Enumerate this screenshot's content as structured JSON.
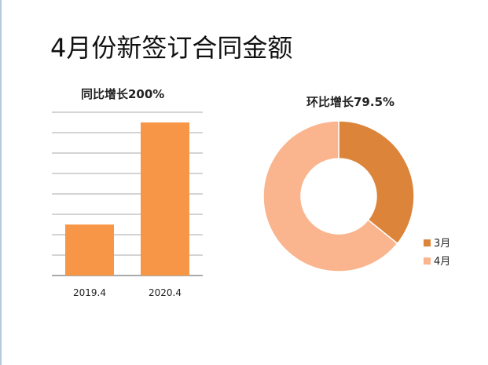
{
  "page": {
    "title": "4月份新签订合同金额"
  },
  "colors": {
    "bar": "#f79646",
    "donut_mar": "#dc843a",
    "donut_apr": "#fab58e",
    "gridline": "#8c8c8c",
    "axis": "#777777",
    "text": "#222222"
  },
  "chart_data": [
    {
      "type": "bar",
      "title": "同比增长200%",
      "categories": [
        "2019.4",
        "2020.4"
      ],
      "values": [
        2.5,
        7.5
      ],
      "ylim": [
        0,
        8
      ],
      "gridlines": true,
      "xlabel": "",
      "ylabel": ""
    },
    {
      "type": "pie",
      "title": "环比增长79.5%",
      "labels": [
        "3月",
        "4月"
      ],
      "values": [
        35.8,
        64.2
      ],
      "legend": "right"
    }
  ]
}
